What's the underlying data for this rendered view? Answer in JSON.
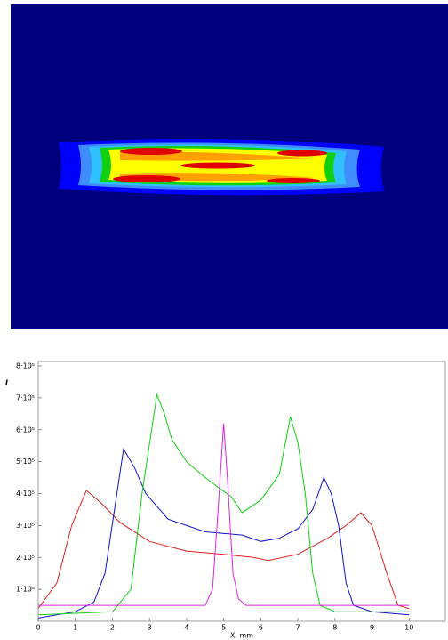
{
  "chart_data": {
    "type": "line",
    "y_label": "I",
    "x_label": "X, mm",
    "xlim": [
      0,
      11
    ],
    "xticks": [
      0,
      1,
      2,
      3,
      4,
      5,
      6,
      7,
      8,
      9,
      10
    ],
    "ylim": [
      0,
      800000
    ],
    "yticks": [
      {
        "value": 100000,
        "label": "1·10⁵"
      },
      {
        "value": 200000,
        "label": "2·10⁵"
      },
      {
        "value": 300000,
        "label": "3·10⁵"
      },
      {
        "value": 400000,
        "label": "4·10⁵"
      },
      {
        "value": 500000,
        "label": "5·10⁵"
      },
      {
        "value": 600000,
        "label": "6·10⁵"
      },
      {
        "value": 700000,
        "label": "7·10⁵"
      },
      {
        "value": 800000,
        "label": "8·10⁵"
      }
    ],
    "series": [
      {
        "color": "#e02020",
        "x": [
          0,
          0.5,
          0.9,
          1.3,
          1.7,
          2.2,
          3,
          4,
          5,
          5.8,
          6.2,
          7,
          7.8,
          8.3,
          8.7,
          9,
          9.4,
          9.7,
          10
        ],
        "values": [
          40000,
          120000,
          300000,
          410000,
          370000,
          310000,
          250000,
          220000,
          210000,
          200000,
          190000,
          210000,
          260000,
          300000,
          340000,
          300000,
          150000,
          50000,
          40000
        ]
      },
      {
        "color": "#1010d0",
        "x": [
          0,
          1,
          1.5,
          1.8,
          2.3,
          2.6,
          2.9,
          3.5,
          4.5,
          5.5,
          6,
          6.5,
          7,
          7.4,
          7.7,
          7.9,
          8.1,
          8.3,
          8.5,
          9,
          10
        ],
        "values": [
          10000,
          30000,
          60000,
          150000,
          540000,
          480000,
          400000,
          320000,
          280000,
          270000,
          250000,
          260000,
          290000,
          350000,
          450000,
          400000,
          300000,
          120000,
          50000,
          30000,
          20000
        ]
      },
      {
        "color": "#10d010",
        "x": [
          0,
          2,
          2.5,
          2.8,
          3.2,
          3.4,
          3.6,
          4,
          4.5,
          5.2,
          5.5,
          6,
          6.5,
          6.8,
          7,
          7.2,
          7.4,
          7.6,
          8,
          10
        ],
        "values": [
          20000,
          30000,
          100000,
          400000,
          710000,
          650000,
          570000,
          500000,
          450000,
          390000,
          340000,
          380000,
          460000,
          640000,
          560000,
          400000,
          150000,
          50000,
          30000,
          30000
        ]
      },
      {
        "color": "#e020e0",
        "x": [
          0,
          4.5,
          4.7,
          4.85,
          5,
          5.1,
          5.25,
          5.4,
          5.6,
          10
        ],
        "values": [
          50000,
          50000,
          100000,
          350000,
          620000,
          450000,
          150000,
          70000,
          50000,
          50000
        ]
      }
    ]
  }
}
